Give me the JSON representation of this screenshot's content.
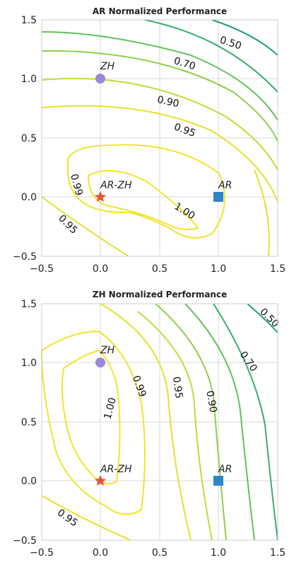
{
  "chart_data": [
    {
      "type": "contour",
      "title": "AR Normalized Performance",
      "xlim": [
        -0.5,
        1.5
      ],
      "ylim": [
        -0.5,
        1.5
      ],
      "xticks": [
        "−0.5",
        "0.0",
        "0.5",
        "1.0",
        "1.5"
      ],
      "yticks": [
        "−0.5",
        "0.0",
        "0.5",
        "1.0",
        "1.5"
      ],
      "grid": true,
      "contour_levels": [
        {
          "level": 1.0,
          "label": "1.00",
          "color": "#f1e52a"
        },
        {
          "level": 0.99,
          "label": "0.99",
          "color": "#f1e52a"
        },
        {
          "level": 0.95,
          "label": "0.95",
          "color": "#e3e22f"
        },
        {
          "level": 0.9,
          "label": "0.90",
          "color": "#bfdc3a"
        },
        {
          "level": 0.8,
          "label": "",
          "color": "#8ed14a"
        },
        {
          "level": 0.7,
          "label": "0.70",
          "color": "#5fc35d"
        },
        {
          "level": 0.6,
          "label": "",
          "color": "#38ad6f"
        },
        {
          "level": 0.5,
          "label": "0.50",
          "color": "#20a07a"
        }
      ],
      "markers": [
        {
          "label": "ZH",
          "x": 0.0,
          "y": 1.0,
          "shape": "circle",
          "color": "#9b88d6"
        },
        {
          "label": "AR-ZH",
          "x": 0.0,
          "y": 0.0,
          "shape": "star",
          "color": "#e8533a"
        },
        {
          "label": "AR",
          "x": 1.0,
          "y": 0.0,
          "shape": "square",
          "color": "#2f86c6"
        }
      ]
    },
    {
      "type": "contour",
      "title": "ZH Normalized Performance",
      "xlim": [
        -0.5,
        1.5
      ],
      "ylim": [
        -0.5,
        1.5
      ],
      "xticks": [
        "−0.5",
        "0.0",
        "0.5",
        "1.0",
        "1.5"
      ],
      "yticks": [
        "−0.5",
        "0.0",
        "0.5",
        "1.0",
        "1.5"
      ],
      "grid": true,
      "contour_levels": [
        {
          "level": 1.0,
          "label": "1.00",
          "color": "#f1e52a"
        },
        {
          "level": 0.99,
          "label": "0.99",
          "color": "#f1e52a"
        },
        {
          "level": 0.95,
          "label": "0.95",
          "color": "#e3e22f"
        },
        {
          "level": 0.9,
          "label": "0.90",
          "color": "#bfdc3a"
        },
        {
          "level": 0.8,
          "label": "",
          "color": "#8ed14a"
        },
        {
          "level": 0.7,
          "label": "0.70",
          "color": "#5fc35d"
        },
        {
          "level": 0.6,
          "label": "",
          "color": "#38ad6f"
        },
        {
          "level": 0.5,
          "label": "0.50",
          "color": "#20a07a"
        }
      ],
      "markers": [
        {
          "label": "ZH",
          "x": 0.0,
          "y": 1.0,
          "shape": "circle",
          "color": "#9b88d6"
        },
        {
          "label": "AR-ZH",
          "x": 0.0,
          "y": 0.0,
          "shape": "star",
          "color": "#e8533a"
        },
        {
          "label": "AR",
          "x": 1.0,
          "y": 0.0,
          "shape": "square",
          "color": "#2f86c6"
        }
      ]
    }
  ]
}
